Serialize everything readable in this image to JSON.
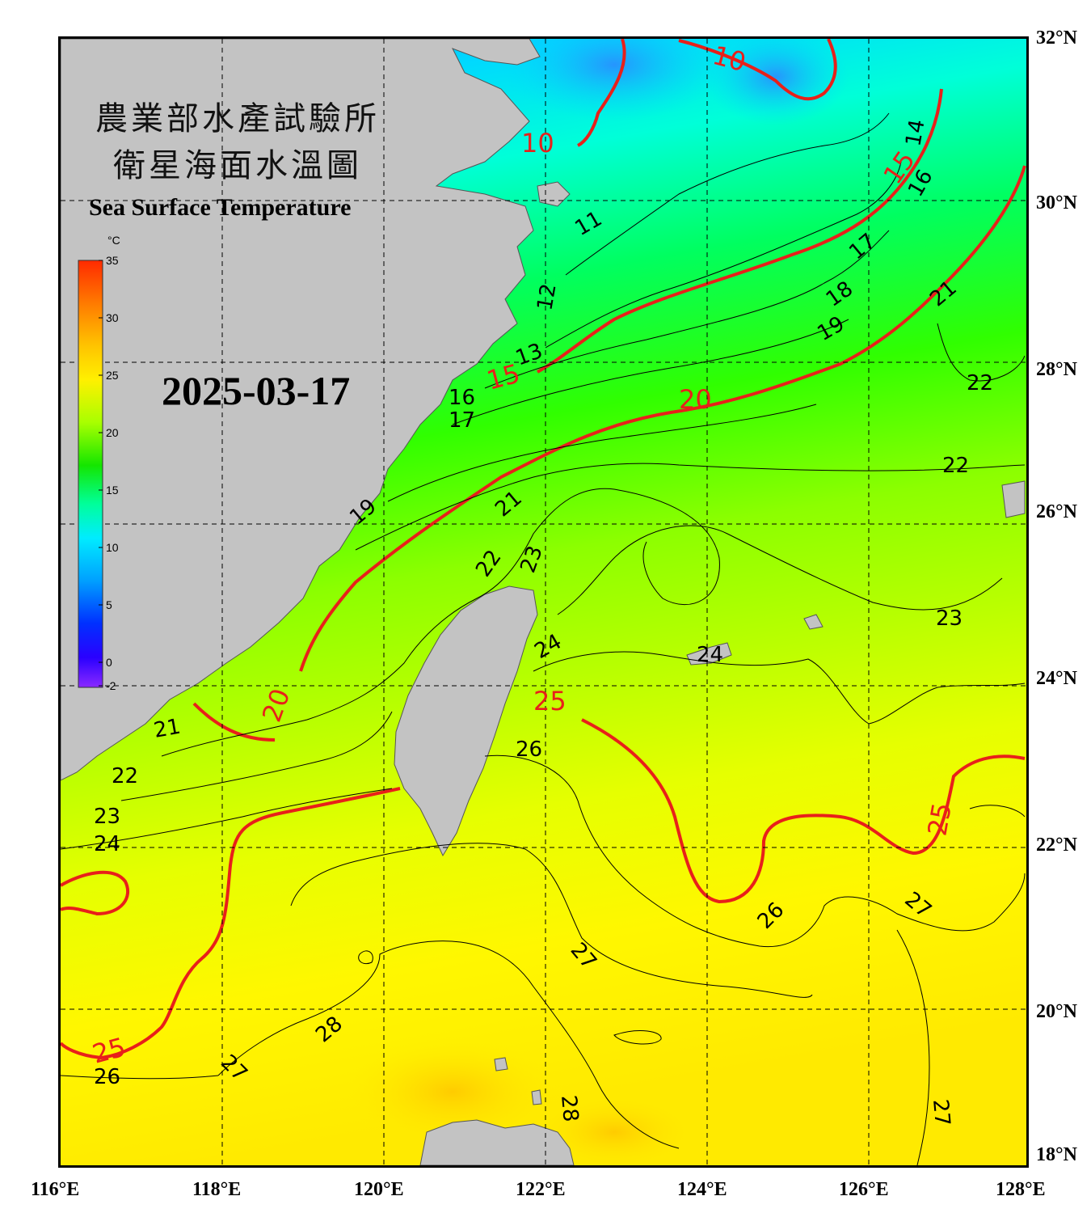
{
  "map": {
    "title_zh_line1": "農業部水產試驗所",
    "title_zh_line2": "衛星海面水溫圖",
    "title_en": "Sea Surface Temperature",
    "date": "2025-03-17",
    "lon_labels": [
      "116°E",
      "118°E",
      "120°E",
      "122°E",
      "124°E",
      "126°E",
      "128°E"
    ],
    "lat_labels": [
      "32°N",
      "30°N",
      "28°N",
      "26°N",
      "24°N",
      "22°N",
      "20°N",
      "18°N"
    ],
    "colorbar": {
      "unit": "°C",
      "ticks": [
        "35",
        "30",
        "25",
        "20",
        "15",
        "10",
        "5",
        "0",
        "-2"
      ],
      "colors": [
        "#ff2a00",
        "#ff8c00",
        "#ffd800",
        "#e6ff00",
        "#7dff00",
        "#14e600",
        "#00ffb0",
        "#00e8ff",
        "#00a8ff",
        "#0050ff",
        "#0000ff",
        "#7a28ff"
      ]
    },
    "land_color": "#c3c3c3",
    "ocean_colors": {
      "cold": "#00bfff",
      "cool": "#00ffe6",
      "mid": "#00ff40",
      "warm": "#8cff00",
      "hot": "#fff000",
      "hottest": "#ffd000"
    },
    "contour_labels_black": [
      "11",
      "12",
      "13",
      "14",
      "16",
      "17",
      "18",
      "19",
      "21",
      "22",
      "23",
      "24",
      "26",
      "27",
      "28"
    ],
    "contour_labels_red": [
      "10",
      "15",
      "20",
      "25"
    ]
  }
}
